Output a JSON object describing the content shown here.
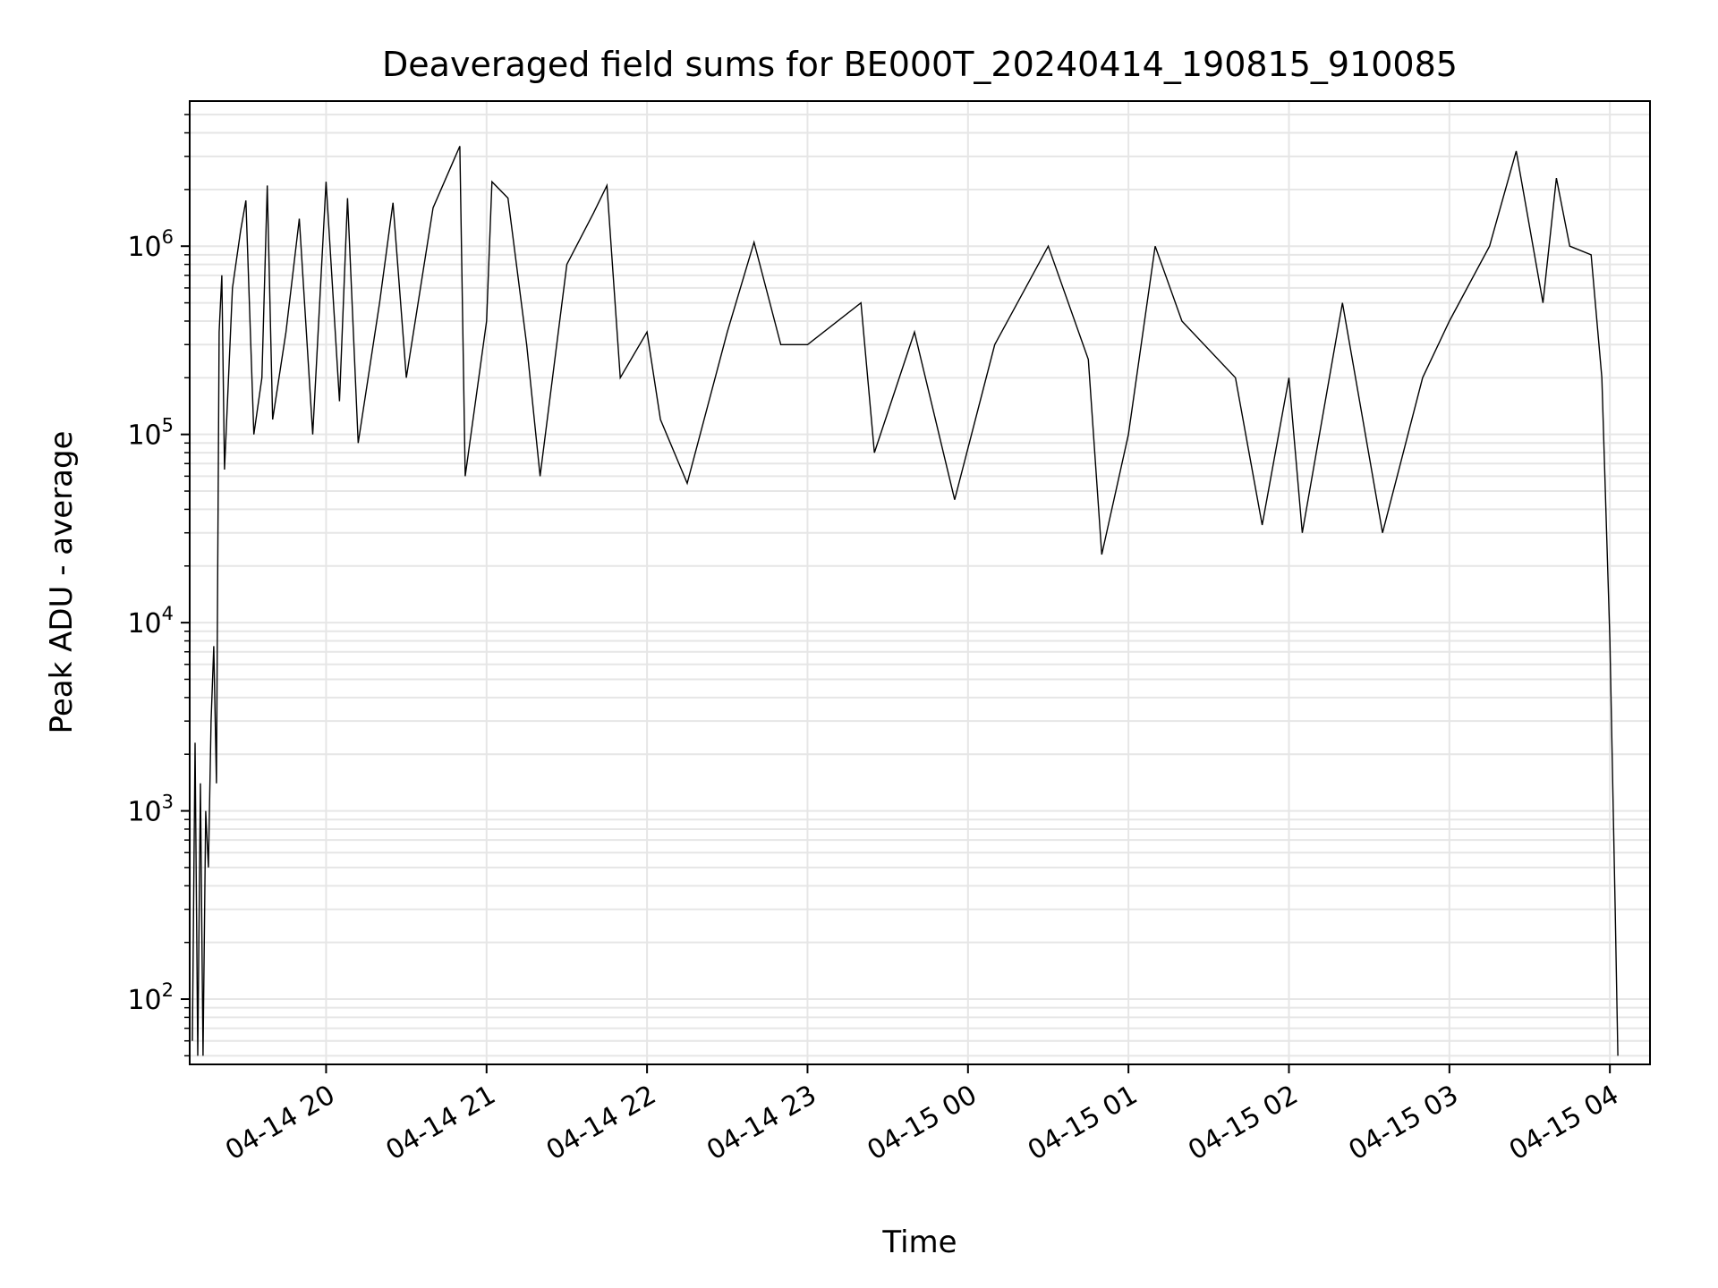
{
  "chart_data": {
    "type": "line",
    "title": "Deaveraged field sums for BE000T_20240414_190815_910085",
    "xlabel": "Time",
    "ylabel": "Peak ADU - average",
    "yscale": "log",
    "ylim": [
      45,
      5900000
    ],
    "xlim": [
      "2024-04-14 19:09",
      "2024-04-15 04:15"
    ],
    "grid": true,
    "line_color": "#000000",
    "grid_color": "#e6e6e6",
    "x_ticks": [
      {
        "t": "2024-04-14 20:00",
        "label": "04-14 20"
      },
      {
        "t": "2024-04-14 21:00",
        "label": "04-14 21"
      },
      {
        "t": "2024-04-14 22:00",
        "label": "04-14 22"
      },
      {
        "t": "2024-04-14 23:00",
        "label": "04-14 23"
      },
      {
        "t": "2024-04-15 00:00",
        "label": "04-15 00"
      },
      {
        "t": "2024-04-15 01:00",
        "label": "04-15 01"
      },
      {
        "t": "2024-04-15 02:00",
        "label": "04-15 02"
      },
      {
        "t": "2024-04-15 03:00",
        "label": "04-15 03"
      },
      {
        "t": "2024-04-15 04:00",
        "label": "04-15 04"
      }
    ],
    "y_ticks": [
      {
        "value": 100,
        "base": "10",
        "exp": "2"
      },
      {
        "value": 1000,
        "base": "10",
        "exp": "3"
      },
      {
        "value": 10000,
        "base": "10",
        "exp": "4"
      },
      {
        "value": 100000,
        "base": "10",
        "exp": "5"
      },
      {
        "value": 1000000,
        "base": "10",
        "exp": "6"
      }
    ],
    "series": [
      {
        "points": [
          [
            "2024-04-14 19:10",
            60
          ],
          [
            "2024-04-14 19:11",
            2300
          ],
          [
            "2024-04-14 19:12",
            50
          ],
          [
            "2024-04-14 19:13",
            1400
          ],
          [
            "2024-04-14 19:14",
            50
          ],
          [
            "2024-04-14 19:15",
            1000
          ],
          [
            "2024-04-14 19:16",
            500
          ],
          [
            "2024-04-14 19:17",
            3000
          ],
          [
            "2024-04-14 19:18",
            7500
          ],
          [
            "2024-04-14 19:19",
            1400
          ],
          [
            "2024-04-14 19:20",
            350000
          ],
          [
            "2024-04-14 19:21",
            700000
          ],
          [
            "2024-04-14 19:22",
            65000
          ],
          [
            "2024-04-14 19:25",
            600000
          ],
          [
            "2024-04-14 19:28",
            1200000
          ],
          [
            "2024-04-14 19:30",
            1750000
          ],
          [
            "2024-04-14 19:33",
            100000
          ],
          [
            "2024-04-14 19:36",
            200000
          ],
          [
            "2024-04-14 19:38",
            2100000
          ],
          [
            "2024-04-14 19:40",
            120000
          ],
          [
            "2024-04-14 19:45",
            350000
          ],
          [
            "2024-04-14 19:50",
            1400000
          ],
          [
            "2024-04-14 19:55",
            100000
          ],
          [
            "2024-04-14 20:00",
            2200000
          ],
          [
            "2024-04-14 20:05",
            150000
          ],
          [
            "2024-04-14 20:08",
            1800000
          ],
          [
            "2024-04-14 20:12",
            90000
          ],
          [
            "2024-04-14 20:20",
            500000
          ],
          [
            "2024-04-14 20:25",
            1700000
          ],
          [
            "2024-04-14 20:30",
            200000
          ],
          [
            "2024-04-14 20:40",
            1600000
          ],
          [
            "2024-04-14 20:50",
            3400000
          ],
          [
            "2024-04-14 20:52",
            60000
          ],
          [
            "2024-04-14 21:00",
            400000
          ],
          [
            "2024-04-14 21:02",
            2200000
          ],
          [
            "2024-04-14 21:08",
            1800000
          ],
          [
            "2024-04-14 21:15",
            300000
          ],
          [
            "2024-04-14 21:20",
            60000
          ],
          [
            "2024-04-14 21:30",
            800000
          ],
          [
            "2024-04-14 21:40",
            1500000
          ],
          [
            "2024-04-14 21:45",
            2100000
          ],
          [
            "2024-04-14 21:50",
            200000
          ],
          [
            "2024-04-14 22:00",
            350000
          ],
          [
            "2024-04-14 22:05",
            120000
          ],
          [
            "2024-04-14 22:15",
            55000
          ],
          [
            "2024-04-14 22:30",
            350000
          ],
          [
            "2024-04-14 22:40",
            1050000
          ],
          [
            "2024-04-14 22:50",
            300000
          ],
          [
            "2024-04-14 23:00",
            300000
          ],
          [
            "2024-04-14 23:20",
            500000
          ],
          [
            "2024-04-14 23:25",
            80000
          ],
          [
            "2024-04-14 23:40",
            350000
          ],
          [
            "2024-04-14 23:55",
            45000
          ],
          [
            "2024-04-15 00:10",
            300000
          ],
          [
            "2024-04-15 00:30",
            1000000
          ],
          [
            "2024-04-15 00:45",
            250000
          ],
          [
            "2024-04-15 00:50",
            23000
          ],
          [
            "2024-04-15 01:00",
            100000
          ],
          [
            "2024-04-15 01:10",
            1000000
          ],
          [
            "2024-04-15 01:20",
            400000
          ],
          [
            "2024-04-15 01:40",
            200000
          ],
          [
            "2024-04-15 01:50",
            33000
          ],
          [
            "2024-04-15 02:00",
            200000
          ],
          [
            "2024-04-15 02:05",
            30000
          ],
          [
            "2024-04-15 02:20",
            500000
          ],
          [
            "2024-04-15 02:35",
            30000
          ],
          [
            "2024-04-15 02:50",
            200000
          ],
          [
            "2024-04-15 03:00",
            400000
          ],
          [
            "2024-04-15 03:15",
            1000000
          ],
          [
            "2024-04-15 03:25",
            3200000
          ],
          [
            "2024-04-15 03:35",
            500000
          ],
          [
            "2024-04-15 03:40",
            2300000
          ],
          [
            "2024-04-15 03:45",
            1000000
          ],
          [
            "2024-04-15 03:53",
            900000
          ],
          [
            "2024-04-15 03:57",
            200000
          ],
          [
            "2024-04-15 04:00",
            8000
          ],
          [
            "2024-04-15 04:02",
            300
          ],
          [
            "2024-04-15 04:03",
            50
          ]
        ]
      }
    ]
  }
}
